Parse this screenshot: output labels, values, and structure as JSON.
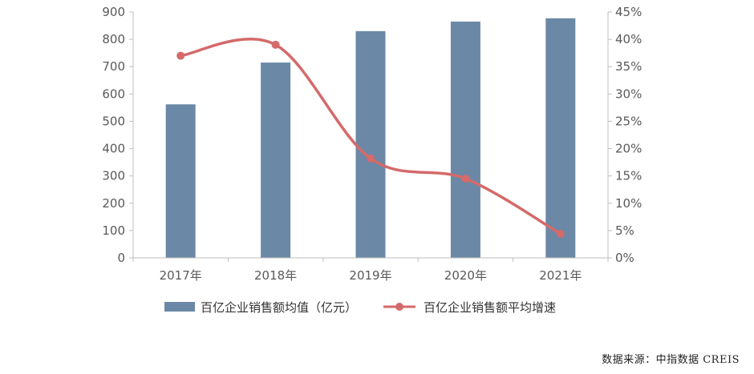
{
  "chart_data": {
    "type": "bar",
    "categories": [
      "2017年",
      "2018年",
      "2019年",
      "2020年",
      "2021年"
    ],
    "series": [
      {
        "name": "百亿企业销售额均值（亿元）",
        "type": "bar",
        "axis": "left",
        "color": "#6b88a6",
        "values": [
          562,
          715,
          830,
          865,
          877
        ]
      },
      {
        "name": "百亿企业销售额平均增速",
        "type": "line",
        "axis": "right",
        "color": "#d46a6a",
        "values": [
          0.37,
          0.39,
          0.182,
          0.145,
          0.044
        ]
      }
    ],
    "y_left": {
      "min": 0,
      "max": 900,
      "step": 100,
      "ticks": [
        "0",
        "100",
        "200",
        "300",
        "400",
        "500",
        "600",
        "700",
        "800",
        "900"
      ]
    },
    "y_right": {
      "min": 0,
      "max": 0.45,
      "step": 0.05,
      "ticks": [
        "0%",
        "5%",
        "10%",
        "15%",
        "20%",
        "25%",
        "30%",
        "35%",
        "40%",
        "45%"
      ]
    },
    "legend_position": "bottom"
  },
  "source_text": "数据来源：中指数据 CREIS"
}
